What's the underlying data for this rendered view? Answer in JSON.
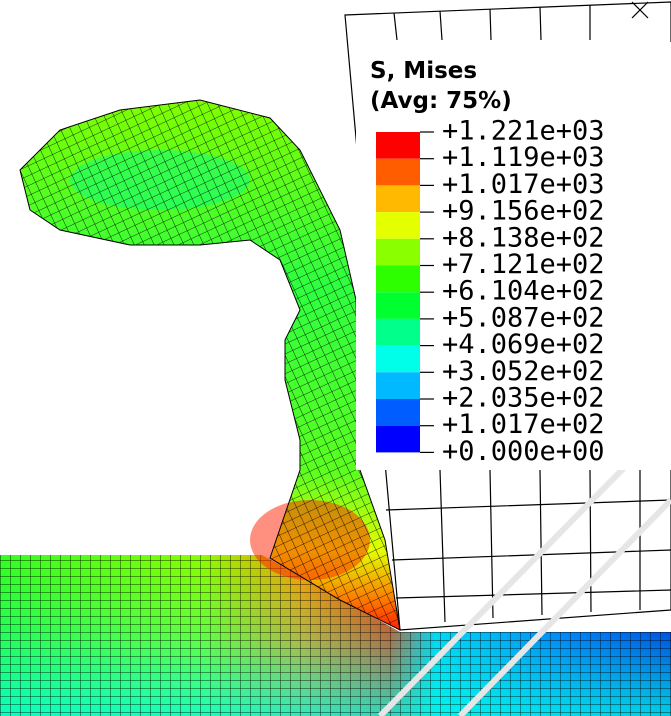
{
  "legend": {
    "title": "S, Mises",
    "subtitle": "(Avg: 75%)",
    "labels": [
      "+1.221e+03",
      "+1.119e+03",
      "+1.017e+03",
      "+9.156e+02",
      "+8.138e+02",
      "+7.121e+02",
      "+6.104e+02",
      "+5.087e+02",
      "+4.069e+02",
      "+3.052e+02",
      "+2.035e+02",
      "+1.017e+02",
      "+0.000e+00"
    ],
    "colors": [
      "#ff0000",
      "#ff5d00",
      "#ffb900",
      "#e3ff00",
      "#8aff00",
      "#2eff00",
      "#00ff2e",
      "#00ff8b",
      "#00ffe8",
      "#00b9ff",
      "#005dff",
      "#0000ff"
    ]
  }
}
